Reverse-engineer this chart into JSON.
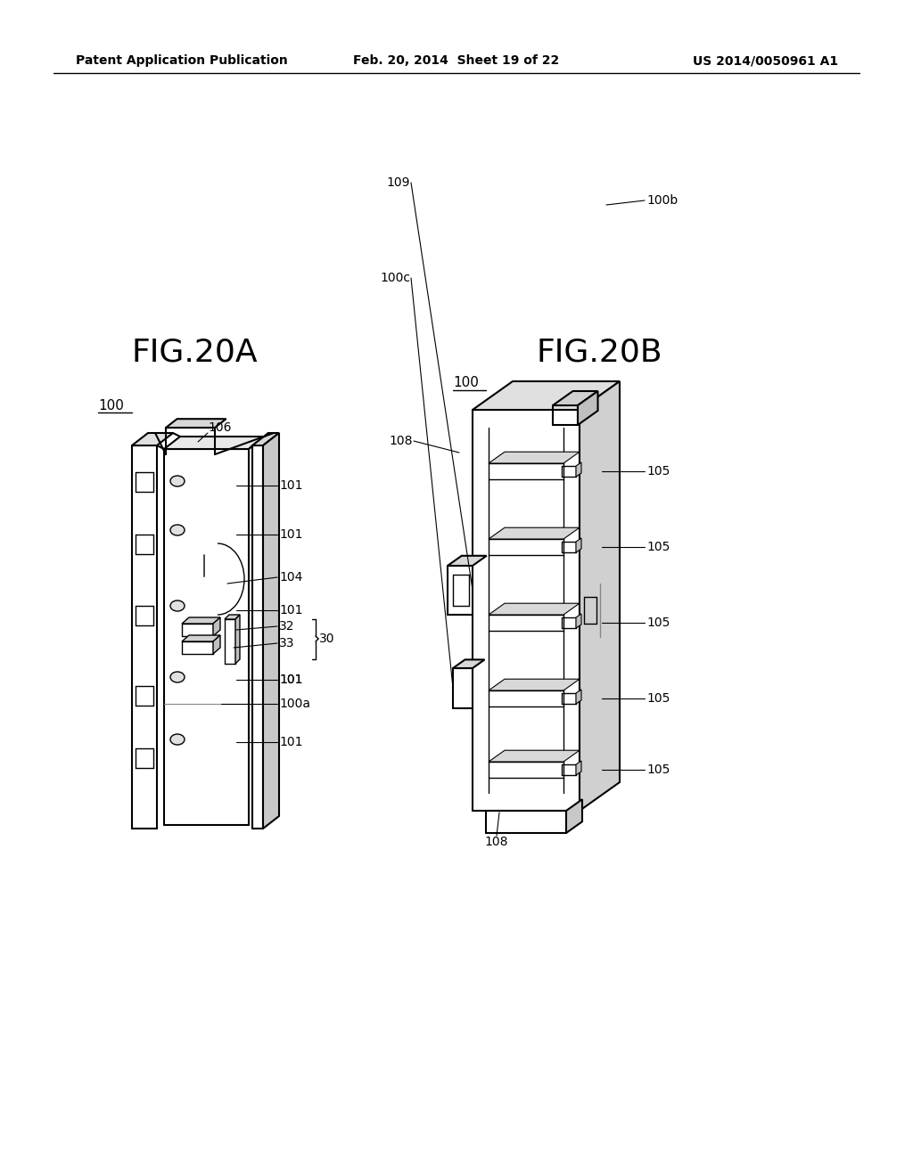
{
  "bg_color": "#ffffff",
  "header_left": "Patent Application Publication",
  "header_mid": "Feb. 20, 2014  Sheet 19 of 22",
  "header_right": "US 2014/0050961 A1",
  "fig_a_title": "FIG.20A",
  "fig_b_title": "FIG.20B",
  "text_color": "#000000",
  "line_color": "#000000",
  "lw_main": 1.5,
  "lw_inner": 1.0,
  "lw_leader": 0.8
}
